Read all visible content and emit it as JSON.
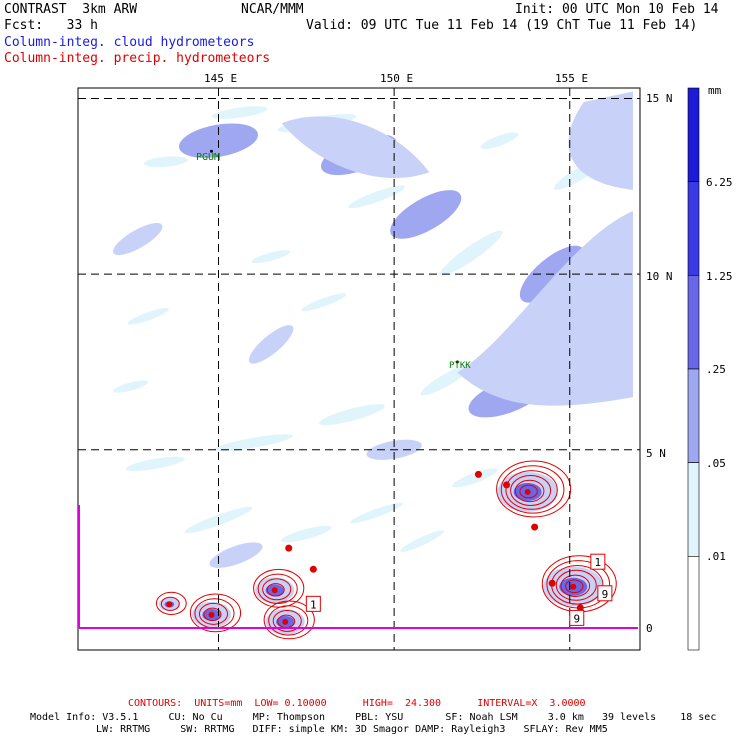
{
  "header": {
    "left_line1": "CONTRAST  3km ARW",
    "center_line1": "NCAR/MMM",
    "right_line1": "Init: 00 UTC Mon 10 Feb 14",
    "left_line2": "Fcst:   33 h",
    "right_line2": "Valid: 09 UTC Tue 11 Feb 14 (19 ChT Tue 11 Feb 14)",
    "field1": "Column-integ. cloud hydrometeors",
    "field2": "Column-integ. precip. hydrometeors"
  },
  "colors": {
    "field1": "#1a1ae6",
    "field2": "#e00000",
    "shade1": "#e0f4fb",
    "shade2": "#c8d2f8",
    "shade3": "#9ea7f0",
    "shade4": "#6767e8",
    "shade5": "#3a3ae6",
    "shade6": "#1c1cd8",
    "contour": "#e00000",
    "boundary": "#e000e0"
  },
  "chart_data": {
    "type": "map",
    "title": "Column-integ. cloud hydrometeors / Column-integ. precip. hydrometeors",
    "lon_range": [
      141,
      157
    ],
    "lat_range": [
      -0.7,
      15.3
    ],
    "lon_ticks": [
      "145 E",
      "150 E",
      "155 E"
    ],
    "lat_ticks": [
      "15 N",
      "10 N",
      "5 N",
      "0"
    ],
    "colorbar": {
      "units": "mm",
      "labels": [
        "6.25",
        "1.25",
        ".25",
        ".05",
        ".01"
      ],
      "bins": [
        0.01,
        0.05,
        0.25,
        1.25,
        6.25
      ]
    },
    "stations": [
      {
        "name": "PGUM",
        "lon": 144.8,
        "lat": 13.5
      },
      {
        "name": "PTKK",
        "lon": 151.8,
        "lat": 7.5
      }
    ],
    "cloud_regions": [
      {
        "lon": 145.0,
        "lat": 13.8,
        "level": 2
      },
      {
        "lon": 149.0,
        "lat": 13.4,
        "level": 2
      },
      {
        "lon": 150.9,
        "lat": 11.7,
        "level": 2
      },
      {
        "lon": 154.5,
        "lat": 10.0,
        "level": 2
      },
      {
        "lon": 155.6,
        "lat": 6.9,
        "level": 2
      },
      {
        "lon": 153.2,
        "lat": 6.5,
        "level": 2
      },
      {
        "lon": 142.7,
        "lat": 11.0,
        "level": 1
      },
      {
        "lon": 146.5,
        "lat": 8.0,
        "level": 1
      },
      {
        "lon": 150.0,
        "lat": 5.0,
        "level": 1
      },
      {
        "lon": 145.5,
        "lat": 2.0,
        "level": 1
      }
    ],
    "precip_cells": [
      {
        "lon": 146.6,
        "lat": 1.0,
        "max": 1.25
      },
      {
        "lon": 153.8,
        "lat": 3.8,
        "max": 6.25
      },
      {
        "lon": 155.1,
        "lat": 1.1,
        "max": 6.25
      },
      {
        "lon": 143.6,
        "lat": 0.6,
        "max": 0.25
      },
      {
        "lon": 144.8,
        "lat": 0.3,
        "max": 1.25
      },
      {
        "lon": 146.9,
        "lat": 0.1,
        "max": 1.25
      }
    ],
    "contour_labels": [
      {
        "text": "1",
        "lon": 147.7,
        "lat": 0.6
      },
      {
        "text": "1",
        "lon": 155.8,
        "lat": 1.8
      },
      {
        "text": "9",
        "lon": 156.0,
        "lat": 0.9
      },
      {
        "text": "9",
        "lon": 155.2,
        "lat": 0.2
      }
    ]
  },
  "footer": {
    "contours": "CONTOURS:  UNITS=mm  LOW= 0.10000      HIGH=  24.300      INTERVAL=X  3.0000",
    "info1": "Model Info: V3.5.1     CU: No Cu     MP: Thompson     PBL: YSU       SF: Noah LSM     3.0 km   39 levels    18 sec",
    "info2": "LW: RRTMG     SW: RRTMG   DIFF: simple KM: 3D Smagor DAMP: Rayleigh3   SFLAY: Rev MM5"
  }
}
